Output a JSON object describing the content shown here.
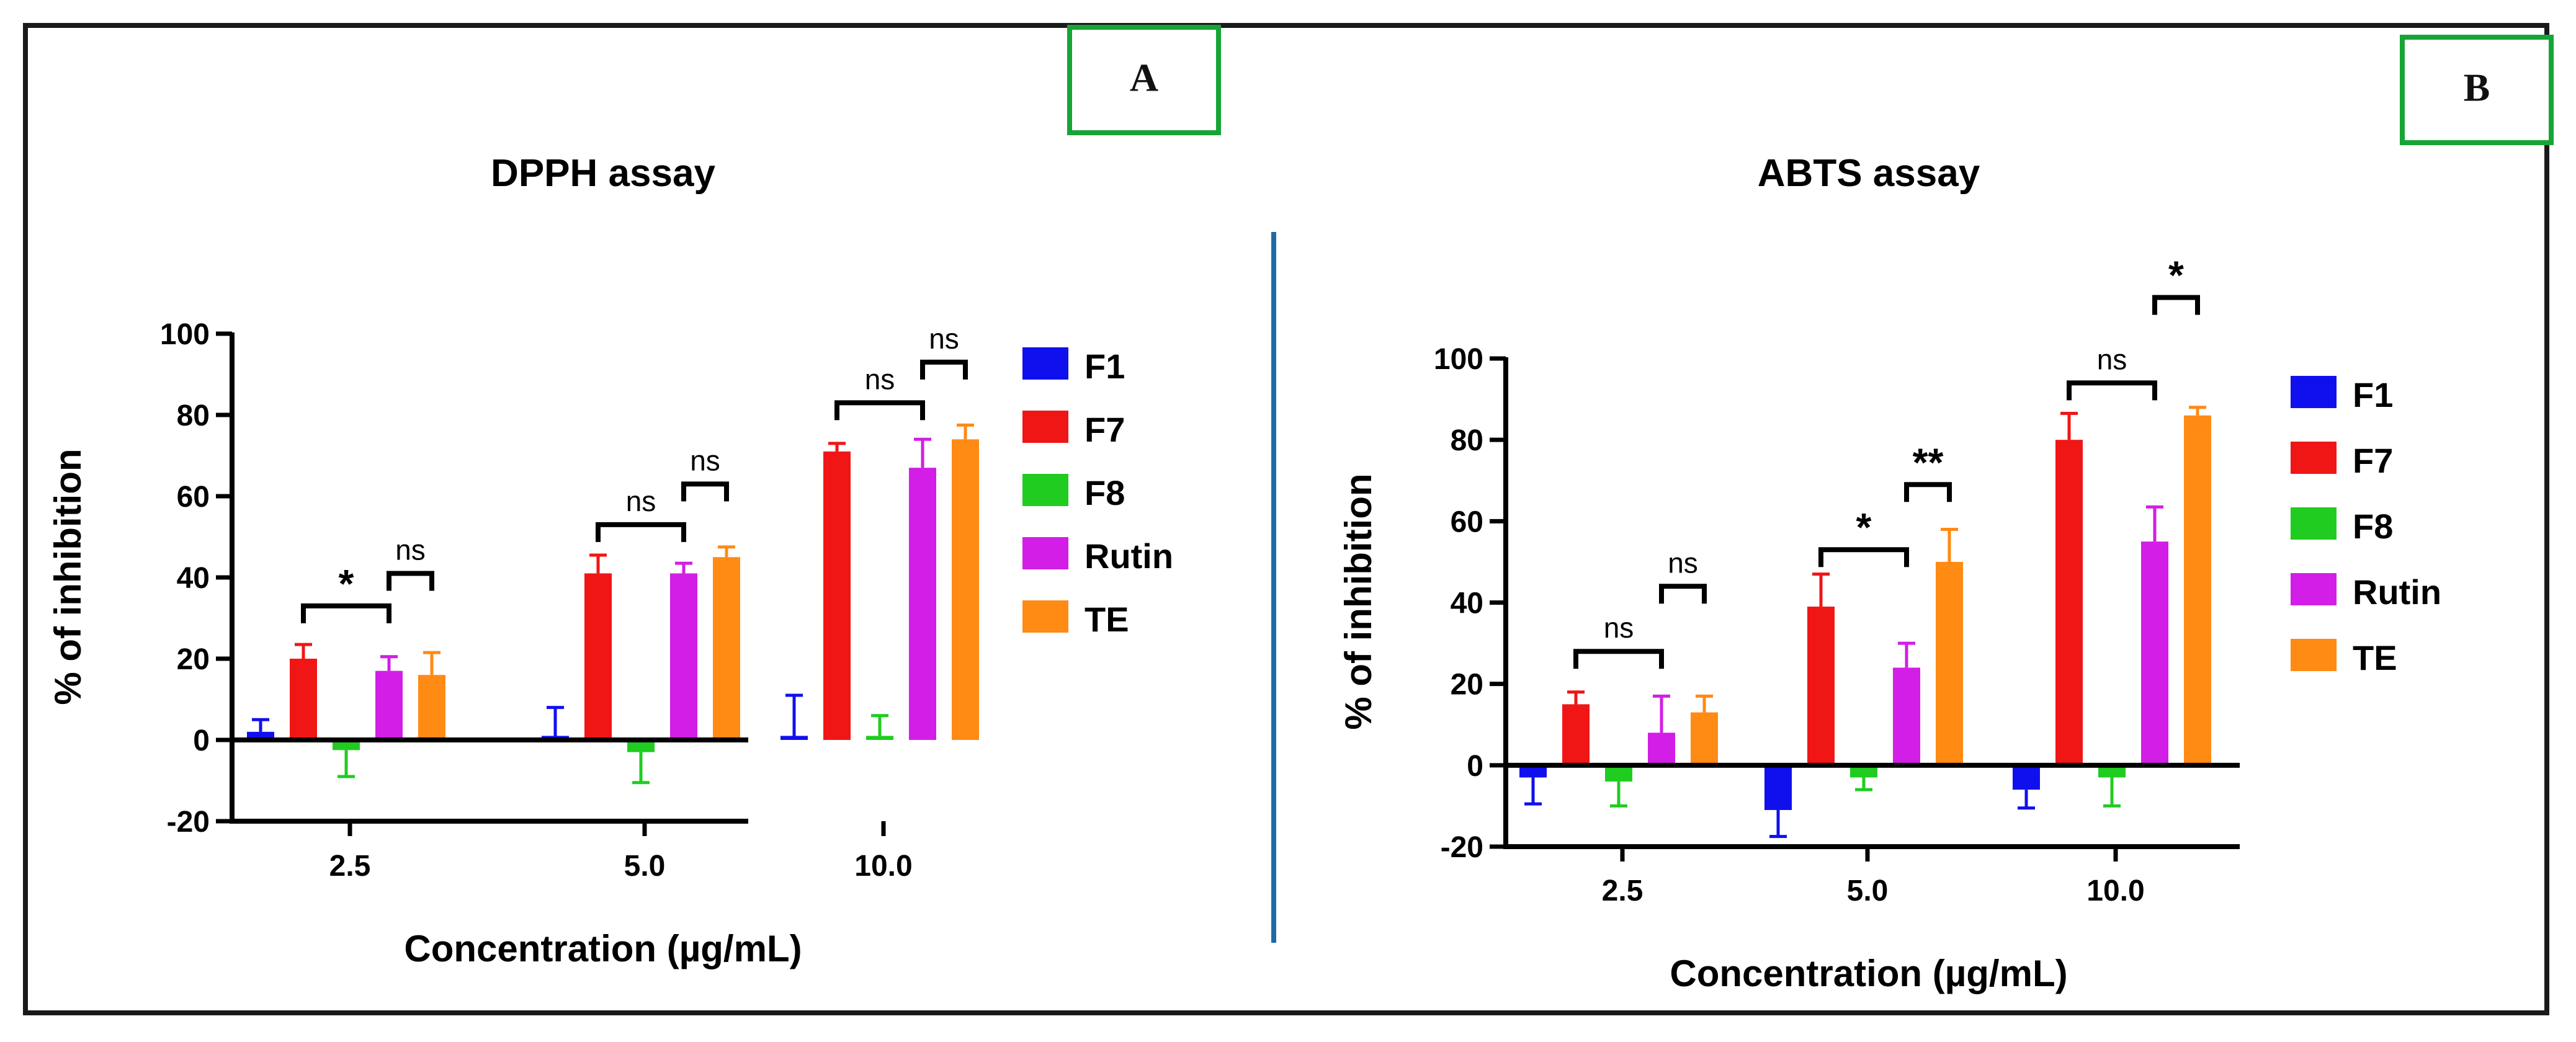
{
  "colors": {
    "F1": "#1010ee",
    "F7": "#f01616",
    "F8": "#20cc20",
    "Rutin": "#d21ee6",
    "TE": "#ff8a14",
    "axis": "#000000",
    "divider": "#1f6aa5",
    "panel_box": "#16a534"
  },
  "panels": {
    "A": {
      "label": "A"
    },
    "B": {
      "label": "B"
    }
  },
  "chart_data": [
    {
      "type": "bar",
      "panel": "A",
      "title": "DPPH assay",
      "xlabel": "Concentration (µg/mL)",
      "ylabel": "% of inhibition",
      "categories": [
        "2.5",
        "5.0",
        "10.0"
      ],
      "ylim": [
        -20,
        100
      ],
      "yticks": [
        -20,
        0,
        20,
        40,
        60,
        80,
        100
      ],
      "ytick_labels": [
        "-20",
        "0",
        "20",
        "40",
        "60",
        "80",
        "100"
      ],
      "error_direction": "away_from_zero",
      "legend": [
        "F1",
        "F7",
        "F8",
        "Rutin",
        "TE"
      ],
      "legend_position": "right",
      "series": [
        {
          "name": "F1",
          "values": [
            2,
            1,
            1
          ],
          "errors": [
            3,
            7,
            10
          ]
        },
        {
          "name": "F7",
          "values": [
            20,
            41,
            71
          ],
          "errors": [
            3.5,
            4.5,
            2
          ]
        },
        {
          "name": "F8",
          "values": [
            -2.5,
            -3,
            1
          ],
          "errors": [
            6.5,
            7.5,
            5
          ]
        },
        {
          "name": "Rutin",
          "values": [
            17,
            41,
            67
          ],
          "errors": [
            3.5,
            2.5,
            7
          ]
        },
        {
          "name": "TE",
          "values": [
            16,
            45,
            74
          ],
          "errors": [
            5.5,
            2.5,
            3.5
          ]
        }
      ],
      "annotations": [
        {
          "text": "*",
          "from": "F7",
          "to": "Rutin",
          "category": "2.5",
          "level": 33
        },
        {
          "text": "ns",
          "from": "Rutin",
          "to": "TE",
          "category": "2.5",
          "level": 41
        },
        {
          "text": "ns",
          "from": "F7",
          "to": "Rutin",
          "category": "5.0",
          "level": 53
        },
        {
          "text": "ns",
          "from": "Rutin",
          "to": "TE",
          "category": "5.0",
          "level": 63
        },
        {
          "text": "ns",
          "from": "F7",
          "to": "Rutin",
          "category": "10.0",
          "level": 83
        },
        {
          "text": "ns",
          "from": "Rutin",
          "to": "TE",
          "category": "10.0",
          "level": 93
        }
      ]
    },
    {
      "type": "bar",
      "panel": "B",
      "title": "ABTS assay",
      "xlabel": "Concentration (µg/mL)",
      "ylabel": "% of inhibition",
      "categories": [
        "2.5",
        "5.0",
        "10.0"
      ],
      "ylim": [
        -20,
        100
      ],
      "yticks": [
        -20,
        0,
        20,
        40,
        60,
        80,
        100
      ],
      "ytick_labels": [
        "-20",
        "0",
        "20",
        "40",
        "60",
        "80",
        "100"
      ],
      "error_direction": "away_from_zero",
      "legend": [
        "F1",
        "F7",
        "F8",
        "Rutin",
        "TE"
      ],
      "legend_position": "right",
      "series": [
        {
          "name": "F1",
          "values": [
            -3,
            -11,
            -6
          ],
          "errors": [
            6.5,
            6.5,
            4.5
          ]
        },
        {
          "name": "F7",
          "values": [
            15,
            39,
            80
          ],
          "errors": [
            3,
            8,
            6.5
          ]
        },
        {
          "name": "F8",
          "values": [
            -4,
            -3,
            -3
          ],
          "errors": [
            6,
            3,
            7
          ]
        },
        {
          "name": "Rutin",
          "values": [
            8,
            24,
            55
          ],
          "errors": [
            9,
            6,
            8.5
          ]
        },
        {
          "name": "TE",
          "values": [
            13,
            50,
            86
          ],
          "errors": [
            4,
            8,
            2
          ]
        }
      ],
      "annotations": [
        {
          "text": "ns",
          "from": "F7",
          "to": "Rutin",
          "category": "2.5",
          "level": 28
        },
        {
          "text": "ns",
          "from": "Rutin",
          "to": "TE",
          "category": "2.5",
          "level": 44
        },
        {
          "text": "*",
          "from": "F7",
          "to": "Rutin",
          "category": "5.0",
          "level": 53
        },
        {
          "text": "**",
          "from": "Rutin",
          "to": "TE",
          "category": "5.0",
          "level": 69
        },
        {
          "text": "ns",
          "from": "F7",
          "to": "Rutin",
          "category": "10.0",
          "level": 94
        },
        {
          "text": "*",
          "from": "Rutin",
          "to": "TE",
          "category": "10.0",
          "level": 115
        }
      ]
    }
  ]
}
